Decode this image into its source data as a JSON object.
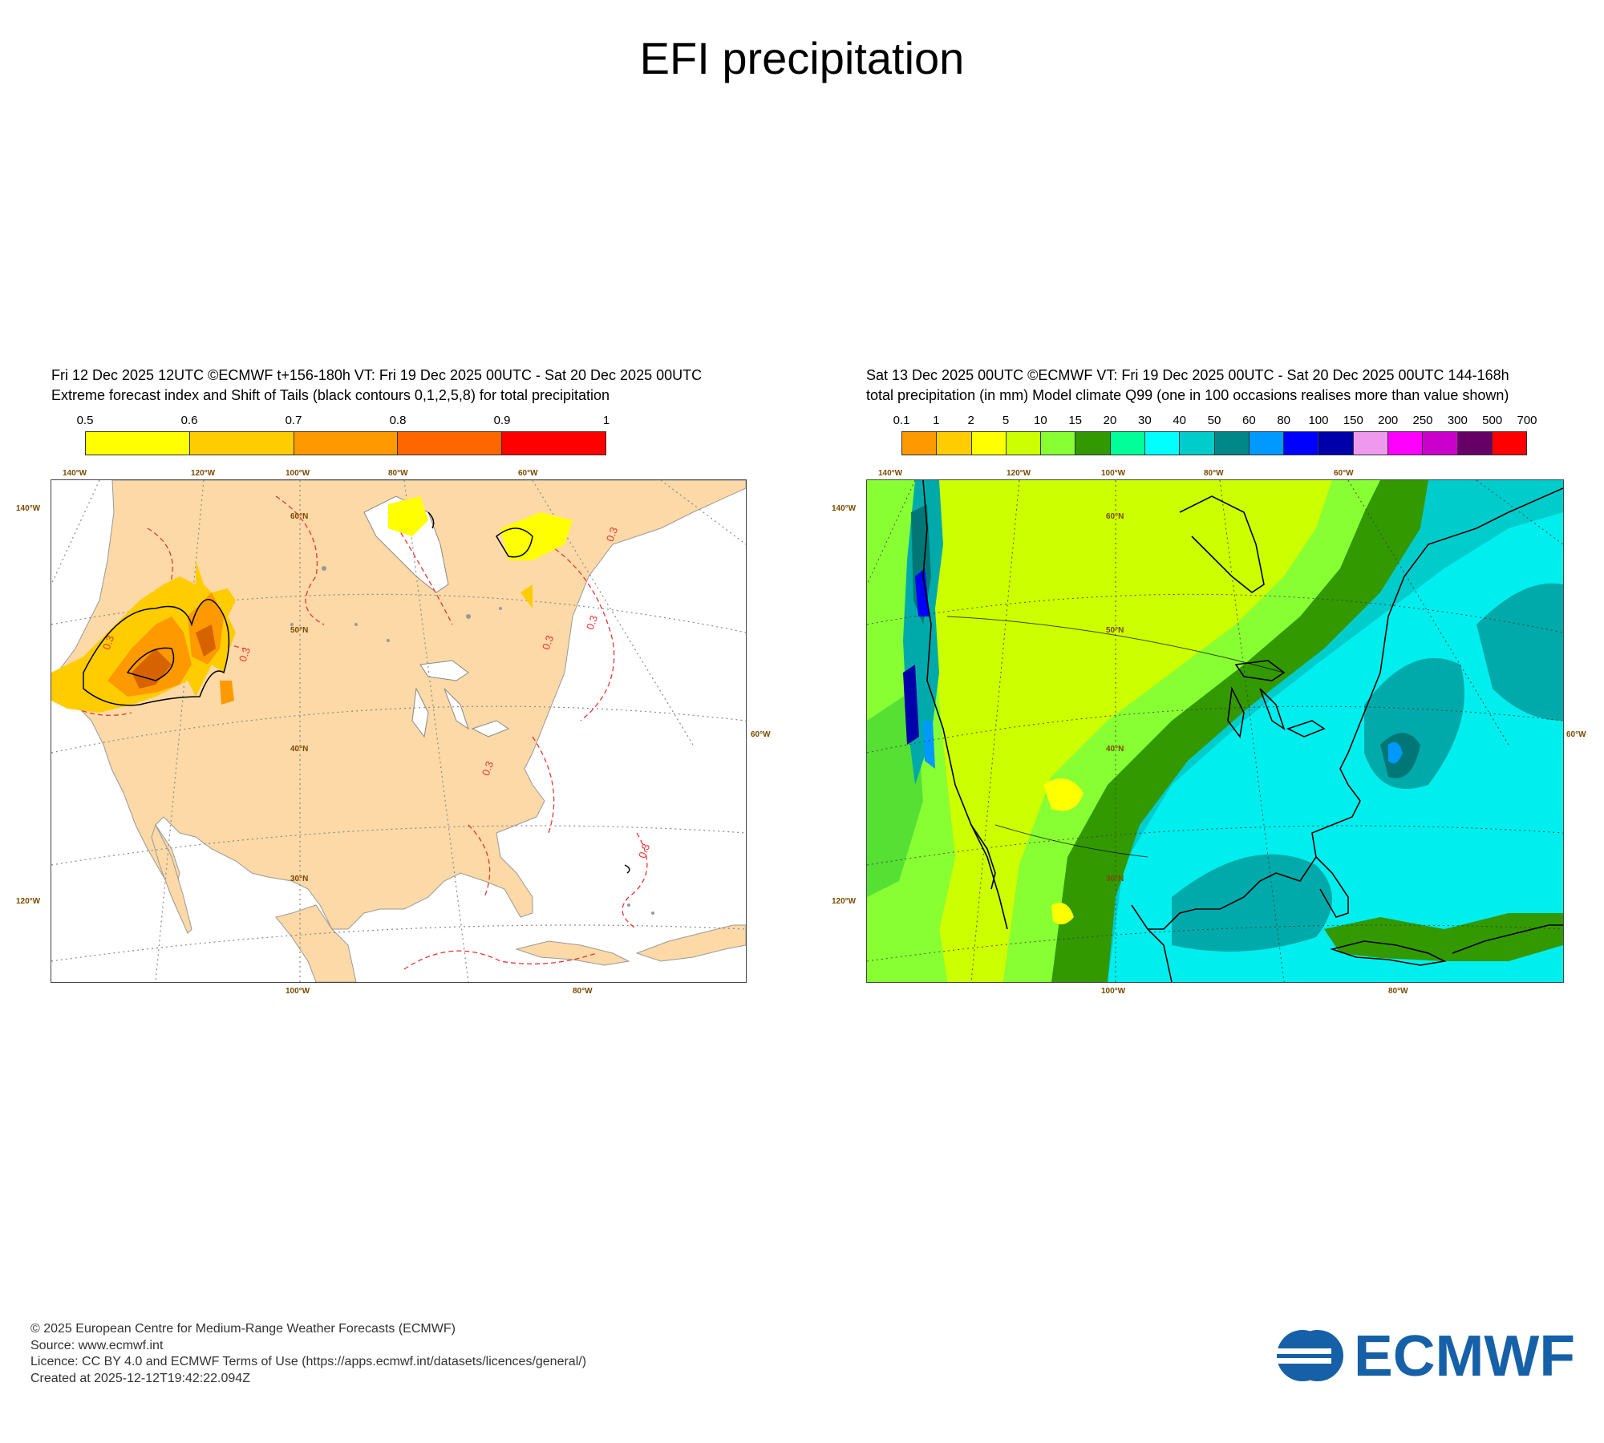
{
  "title": "EFI precipitation",
  "left": {
    "header_line1": "Fri 12 Dec 2025 12UTC ©ECMWF t+156-180h  VT: Fri 19 Dec 2025 00UTC - Sat 20 Dec 2025 00UTC",
    "header_line2": "Extreme forecast index and Shift of Tails (black contours 0,1,2,5,8) for total precipitation",
    "colorbar": {
      "labels": [
        "0.5",
        "0.6",
        "0.7",
        "0.8",
        "0.9",
        "1"
      ],
      "colors": [
        "#ffff00",
        "#ffcc00",
        "#ff9900",
        "#ff6600",
        "#ff0000"
      ]
    },
    "top_lon_labels": [
      "140°W",
      "120°W",
      "100°W",
      "80°W",
      "60°W"
    ],
    "bottom_lon_labels": [
      "100°W",
      "80°W"
    ],
    "left_lon_labels": [
      "140°W",
      "120°W"
    ],
    "right_lon_labels": [
      "60°W"
    ],
    "lat_labels": [
      "60°N",
      "50°N",
      "40°N",
      "30°N"
    ],
    "contour_labels": [
      "0.3",
      "0.3",
      "0.3",
      "0.3",
      "0.3",
      "0.3",
      "0.3"
    ],
    "land_color": "#fcd9a6"
  },
  "right": {
    "header_line1": "Sat 13 Dec 2025 00UTC ©ECMWF VT: Fri 19 Dec 2025 00UTC - Sat 20 Dec 2025 00UTC   144-168h",
    "header_line2": "total precipitation  (in mm)  Model climate Q99 (one in 100 occasions realises more than value shown)",
    "colorbar": {
      "labels": [
        "0.1",
        "1",
        "2",
        "5",
        "10",
        "15",
        "20",
        "30",
        "40",
        "50",
        "60",
        "80",
        "100",
        "150",
        "200",
        "250",
        "300",
        "500",
        "700"
      ],
      "colors": [
        "#ff9900",
        "#ffcc00",
        "#ffff00",
        "#ccff00",
        "#88ff33",
        "#339900",
        "#00ff99",
        "#00ffff",
        "#00cccc",
        "#008888",
        "#0099ff",
        "#0000ff",
        "#0000aa",
        "#ee99ee",
        "#ff00ff",
        "#cc00cc",
        "#660066",
        "#ff0000"
      ]
    },
    "top_lon_labels": [
      "140°W",
      "120°W",
      "100°W",
      "80°W",
      "60°W"
    ],
    "bottom_lon_labels": [
      "100°W",
      "80°W"
    ],
    "left_lon_labels": [
      "140°W",
      "120°W"
    ],
    "right_lon_labels": [
      "60°W"
    ],
    "lat_labels": [
      "60°N",
      "50°N",
      "40°N",
      "30°N"
    ]
  },
  "footer": {
    "line1": "© 2025 European Centre for Medium-Range Weather Forecasts (ECMWF)",
    "line2": "Source: www.ecmwf.int",
    "line3": "Licence: CC BY 4.0 and ECMWF Terms of Use (https://apps.ecmwf.int/datasets/licences/general/)",
    "line4": "Created at 2025-12-12T19:42:22.094Z"
  },
  "logo_text": "ECMWF",
  "brand_color": "#1660a8"
}
